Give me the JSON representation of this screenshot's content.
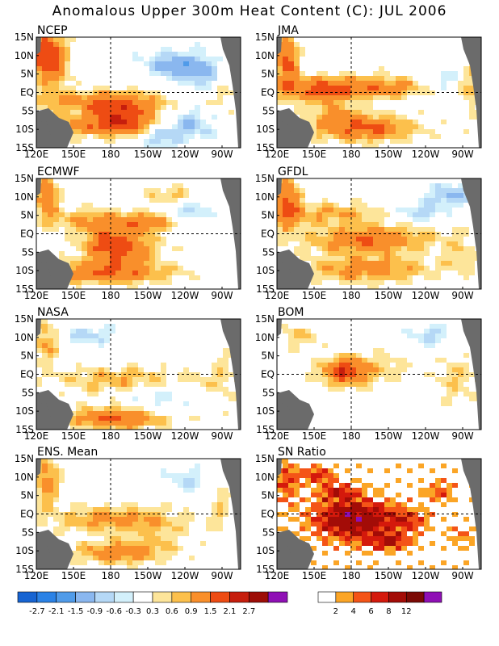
{
  "title": "Anomalous Upper 300m Heat Content (C): JUL 2006",
  "colors": {
    "land": "#6b6b6b",
    "anomaly_scale": [
      "#1764d2",
      "#2b82e6",
      "#509be9",
      "#8ab7ef",
      "#b5d8f6",
      "#d3f0fb",
      "#ffffff",
      "#fde59a",
      "#fcc04c",
      "#f98f2b",
      "#ee4c13",
      "#c61e0d",
      "#9d0d07",
      "#8f10b5"
    ],
    "sn_scale": [
      "#ffffff",
      "#fba526",
      "#f45417",
      "#d4190c",
      "#a30c07",
      "#7b0a05",
      "#8f10b5"
    ]
  },
  "chart_data": {
    "type": "heatmap",
    "x_ticks": [
      "120E",
      "150E",
      "180",
      "150W",
      "120W",
      "90W"
    ],
    "y_ticks": [
      "15N",
      "10N",
      "5N",
      "EQ",
      "5S",
      "10S",
      "15S"
    ],
    "panels": [
      {
        "name": "NCEP"
      },
      {
        "name": "JMA"
      },
      {
        "name": "ECMWF"
      },
      {
        "name": "GFDL"
      },
      {
        "name": "NASA"
      },
      {
        "name": "BOM"
      },
      {
        "name": "ENS. Mean"
      },
      {
        "name": "SN Ratio"
      }
    ],
    "anomaly_colorbar": {
      "labels": [
        "-2.7",
        "-2.1",
        "-1.5",
        "-0.9",
        "-0.6",
        "-0.3",
        "0.3",
        "0.6",
        "0.9",
        "1.5",
        "2.1",
        "2.7"
      ]
    },
    "sn_colorbar": {
      "labels": [
        "2",
        "4",
        "6",
        "8",
        "12"
      ]
    }
  }
}
